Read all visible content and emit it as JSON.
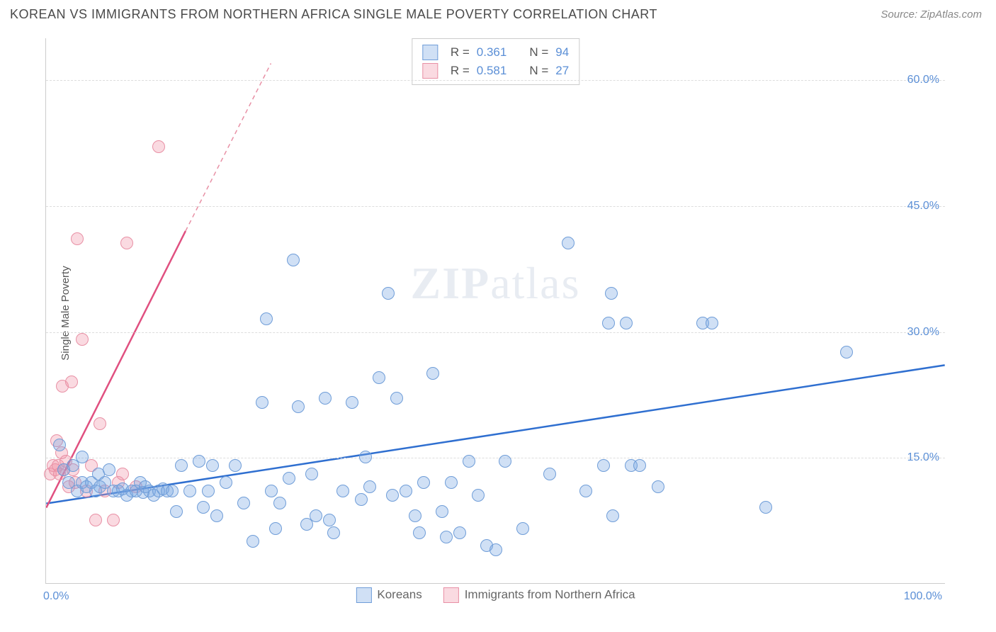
{
  "header": {
    "title": "KOREAN VS IMMIGRANTS FROM NORTHERN AFRICA SINGLE MALE POVERTY CORRELATION CHART",
    "source_prefix": "Source: ",
    "source_name": "ZipAtlas.com"
  },
  "axes": {
    "y_label": "Single Male Poverty",
    "x_min": 0,
    "x_max": 100,
    "y_min": 0,
    "y_max": 65,
    "x_ticks": [
      {
        "v": 0,
        "label": "0.0%"
      },
      {
        "v": 100,
        "label": "100.0%"
      }
    ],
    "y_ticks": [
      {
        "v": 15,
        "label": "15.0%"
      },
      {
        "v": 30,
        "label": "30.0%"
      },
      {
        "v": 45,
        "label": "45.0%"
      },
      {
        "v": 60,
        "label": "60.0%"
      }
    ],
    "grid_color": "#dddddd",
    "axis_color": "#cccccc",
    "tick_label_color": "#5b8fd6",
    "tick_fontsize": 16,
    "ylabel_color": "#555555",
    "ylabel_fontsize": 15
  },
  "series": {
    "koreans": {
      "label": "Koreans",
      "fill": "rgba(120,165,225,0.35)",
      "stroke": "#6f9dd8",
      "marker_radius": 9,
      "R": "0.361",
      "N": "94",
      "trend": {
        "x1": 0,
        "y1": 9.5,
        "x2": 100,
        "y2": 26,
        "color": "#2f6fd0",
        "width": 2.5,
        "dash": ""
      },
      "points": [
        [
          1.5,
          16.5
        ],
        [
          2,
          13.5
        ],
        [
          2.5,
          12
        ],
        [
          3,
          14
        ],
        [
          3.5,
          11
        ],
        [
          4,
          12
        ],
        [
          4,
          15
        ],
        [
          4.5,
          11.5
        ],
        [
          5,
          12
        ],
        [
          5.5,
          11
        ],
        [
          5.8,
          13
        ],
        [
          6,
          11.5
        ],
        [
          6.5,
          12
        ],
        [
          7,
          13.5
        ],
        [
          7.5,
          11
        ],
        [
          8,
          11
        ],
        [
          8.5,
          11.2
        ],
        [
          9,
          10.5
        ],
        [
          9.5,
          11
        ],
        [
          10,
          11
        ],
        [
          10.5,
          12
        ],
        [
          10.8,
          10.8
        ],
        [
          11,
          11.5
        ],
        [
          11.5,
          11
        ],
        [
          12,
          10.5
        ],
        [
          12.5,
          11
        ],
        [
          13,
          11.2
        ],
        [
          13.5,
          11
        ],
        [
          14,
          11
        ],
        [
          14.5,
          8.5
        ],
        [
          15,
          14
        ],
        [
          16,
          11
        ],
        [
          17,
          14.5
        ],
        [
          17.5,
          9
        ],
        [
          18,
          11
        ],
        [
          18.5,
          14
        ],
        [
          19,
          8
        ],
        [
          20,
          12
        ],
        [
          21,
          14
        ],
        [
          22,
          9.5
        ],
        [
          23,
          5
        ],
        [
          24,
          21.5
        ],
        [
          24.5,
          31.5
        ],
        [
          25,
          11
        ],
        [
          25.5,
          6.5
        ],
        [
          26,
          9.5
        ],
        [
          27,
          12.5
        ],
        [
          27.5,
          38.5
        ],
        [
          28,
          21
        ],
        [
          29,
          7
        ],
        [
          29.5,
          13
        ],
        [
          30,
          8
        ],
        [
          31,
          22
        ],
        [
          31.5,
          7.5
        ],
        [
          32,
          6
        ],
        [
          33,
          11
        ],
        [
          34,
          21.5
        ],
        [
          35,
          10
        ],
        [
          35.5,
          15
        ],
        [
          36,
          11.5
        ],
        [
          37,
          24.5
        ],
        [
          38,
          34.5
        ],
        [
          38.5,
          10.5
        ],
        [
          39,
          22
        ],
        [
          40,
          11
        ],
        [
          41,
          8
        ],
        [
          41.5,
          6
        ],
        [
          42,
          12
        ],
        [
          43,
          25
        ],
        [
          44,
          8.5
        ],
        [
          44.5,
          5.5
        ],
        [
          45,
          12
        ],
        [
          46,
          6
        ],
        [
          47,
          14.5
        ],
        [
          48,
          10.5
        ],
        [
          49,
          4.5
        ],
        [
          50,
          4
        ],
        [
          51,
          14.5
        ],
        [
          53,
          6.5
        ],
        [
          56,
          13
        ],
        [
          58,
          40.5
        ],
        [
          60,
          11
        ],
        [
          62,
          14
        ],
        [
          62.5,
          31
        ],
        [
          62.8,
          34.5
        ],
        [
          63,
          8
        ],
        [
          64.5,
          31
        ],
        [
          65,
          14
        ],
        [
          66,
          14
        ],
        [
          68,
          11.5
        ],
        [
          73,
          31
        ],
        [
          74,
          31
        ],
        [
          80,
          9
        ],
        [
          89,
          27.5
        ]
      ]
    },
    "northern_africa": {
      "label": "Immigrants from Northern Africa",
      "fill": "rgba(240,150,170,0.35)",
      "stroke": "#e890a5",
      "marker_radius": 9,
      "R": "0.581",
      "N": "27",
      "trend_solid": {
        "x1": 0,
        "y1": 9,
        "x2": 15.5,
        "y2": 42,
        "color": "#e05080",
        "width": 2.5
      },
      "trend_dash": {
        "x1": 15.5,
        "y1": 42,
        "x2": 25,
        "y2": 62,
        "color": "#e890a5",
        "width": 1.5
      },
      "points": [
        [
          0.5,
          13
        ],
        [
          0.8,
          14
        ],
        [
          1,
          13.5
        ],
        [
          1.2,
          17
        ],
        [
          1.3,
          14
        ],
        [
          1.5,
          13
        ],
        [
          1.7,
          15.5
        ],
        [
          1.8,
          23.5
        ],
        [
          2,
          13.5
        ],
        [
          2.2,
          14.5
        ],
        [
          2.5,
          11.5
        ],
        [
          2.8,
          24
        ],
        [
          3,
          13.5
        ],
        [
          3.2,
          12
        ],
        [
          3.5,
          41
        ],
        [
          4,
          29
        ],
        [
          4.5,
          11
        ],
        [
          5,
          14
        ],
        [
          5.5,
          7.5
        ],
        [
          6,
          19
        ],
        [
          6.5,
          11
        ],
        [
          7.5,
          7.5
        ],
        [
          8,
          12
        ],
        [
          9,
          40.5
        ],
        [
          10,
          11.5
        ],
        [
          12.5,
          52
        ],
        [
          8.5,
          13
        ]
      ]
    }
  },
  "legend": {
    "stats_label_R": "R =",
    "stats_label_N": "N =",
    "box_border": "#cccccc",
    "text_color": "#555555",
    "value_color": "#5b8fd6",
    "fontsize": 17
  },
  "watermark": {
    "text_bold": "ZIP",
    "text_rest": "atlas",
    "color": "rgba(100,130,170,0.15)",
    "fontsize": 64
  },
  "background_color": "#ffffff"
}
